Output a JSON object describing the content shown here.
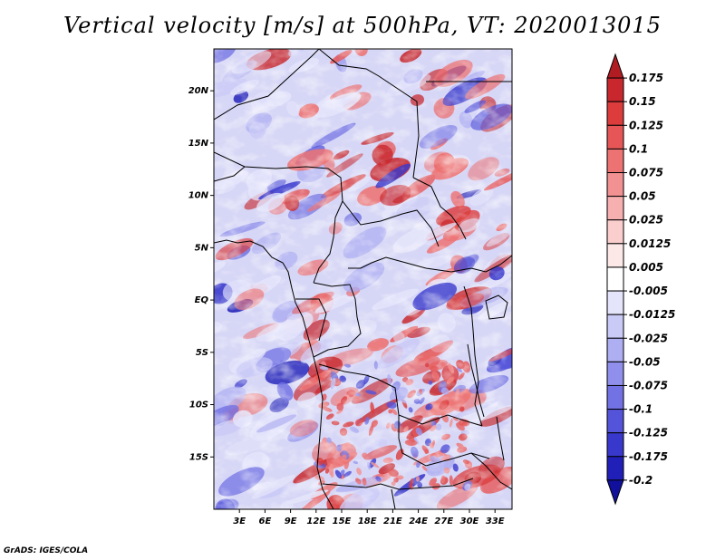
{
  "title": "Vertical velocity [m/s] at 500hPa, VT: 2020013015",
  "credit": "GrADS: IGES/COLA",
  "map": {
    "lon_range": [
      0,
      35
    ],
    "lat_range": [
      -20,
      24
    ],
    "lat_ticks": [
      {
        "lat": 20,
        "label": "20N"
      },
      {
        "lat": 15,
        "label": "15N"
      },
      {
        "lat": 10,
        "label": "10N"
      },
      {
        "lat": 5,
        "label": "5N"
      },
      {
        "lat": 0,
        "label": "EQ"
      },
      {
        "lat": -5,
        "label": "5S"
      },
      {
        "lat": -10,
        "label": "10S"
      },
      {
        "lat": -15,
        "label": "15S"
      }
    ],
    "lon_ticks": [
      {
        "lon": 3,
        "label": "3E"
      },
      {
        "lon": 6,
        "label": "6E"
      },
      {
        "lon": 9,
        "label": "9E"
      },
      {
        "lon": 12,
        "label": "12E"
      },
      {
        "lon": 15,
        "label": "15E"
      },
      {
        "lon": 18,
        "label": "18E"
      },
      {
        "lon": 21,
        "label": "21E"
      },
      {
        "lon": 24,
        "label": "24E"
      },
      {
        "lon": 27,
        "label": "27E"
      },
      {
        "lon": 30,
        "label": "30E"
      },
      {
        "lon": 33,
        "label": "33E"
      }
    ]
  },
  "colorbar": {
    "levels": [
      "0.175",
      "0.15",
      "0.125",
      "0.1",
      "0.075",
      "0.05",
      "0.025",
      "0.0125",
      "0.005",
      "-0.005",
      "-0.0125",
      "-0.025",
      "-0.05",
      "-0.075",
      "-0.1",
      "-0.125",
      "-0.175",
      "-0.2"
    ],
    "colors": [
      "#b01c22",
      "#c8282d",
      "#dc3c3c",
      "#e65656",
      "#ed7373",
      "#f29191",
      "#f7b0b0",
      "#fbcece",
      "#fde8e8",
      "#ffffff",
      "#e4e4fb",
      "#cacaf7",
      "#aeaef2",
      "#9090ec",
      "#7272e4",
      "#5454da",
      "#3838cc",
      "#2020b8",
      "#10109c"
    ]
  },
  "colors": {
    "land_border": "#000000",
    "axis": "#000000"
  }
}
